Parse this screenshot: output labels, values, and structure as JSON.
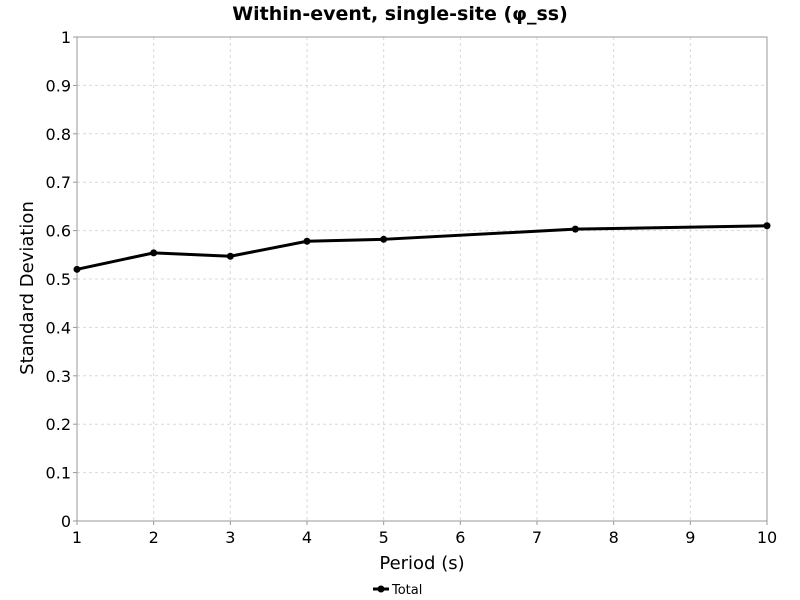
{
  "chart_data": {
    "type": "line",
    "title": "Within-event, single-site (φ_ss)",
    "xlabel": "Period (s)",
    "ylabel": "Standard Deviation",
    "xlim": [
      1,
      10
    ],
    "ylim": [
      0,
      1
    ],
    "x_ticks": [
      "1",
      "2",
      "3",
      "4",
      "5",
      "6",
      "7",
      "8",
      "9",
      "10"
    ],
    "y_ticks": [
      "0",
      "0.1",
      "0.2",
      "0.3",
      "0.4",
      "0.5",
      "0.6",
      "0.7",
      "0.8",
      "0.9",
      "1"
    ],
    "grid": true,
    "legend_position": "bottom-center",
    "series": [
      {
        "name": "Total",
        "color": "#000000",
        "x": [
          1,
          2,
          3,
          4,
          5,
          7.5,
          10
        ],
        "y": [
          0.52,
          0.554,
          0.547,
          0.578,
          0.582,
          0.603,
          0.61
        ]
      }
    ]
  }
}
